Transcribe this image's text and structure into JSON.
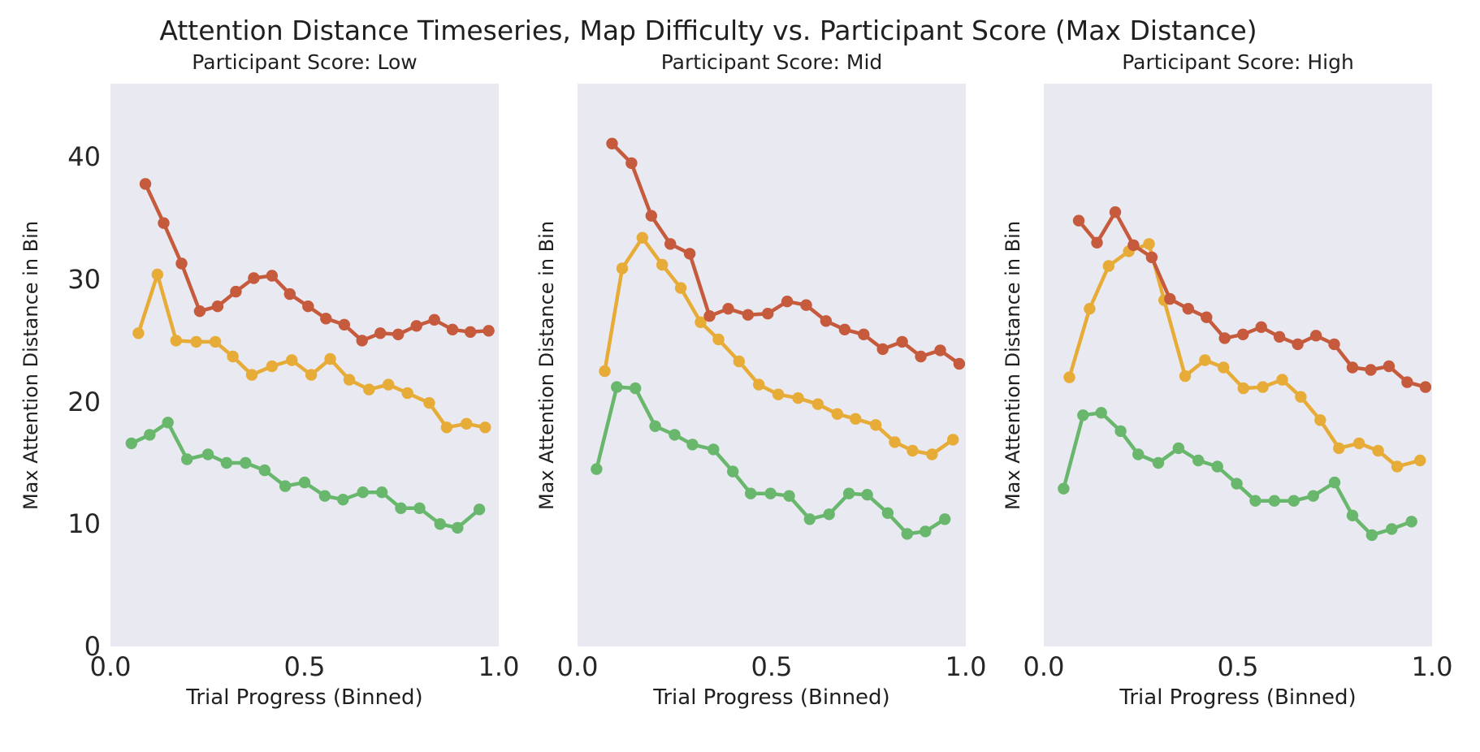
{
  "figure": {
    "suptitle": "Attention Distance Timeseries, Map Difficulty vs. Participant Score (Max Distance)",
    "background_color": "#ffffff",
    "plot_background_color": "#E9E9F2",
    "text_color": "#1f1f1f",
    "series_colors": {
      "green": "#69B76D",
      "gold": "#E7AC38",
      "red": "#C65A3C"
    }
  },
  "chart_data": [
    {
      "type": "line",
      "title": "Participant Score: Low",
      "xlabel": "Trial Progress (Binned)",
      "ylabel": "Max Attention Distance in Bin",
      "xlim": [
        0,
        1
      ],
      "ylim": [
        0,
        46
      ],
      "grid": false,
      "legend": "none",
      "show_ytick_labels": true,
      "xtick_values": [
        0,
        0.5,
        1
      ],
      "xtick_labels": [
        "0.0",
        "0.5",
        "1.0"
      ],
      "ytick_values": [
        0,
        10,
        20,
        30,
        40
      ],
      "ytick_labels": [
        "0",
        "10",
        "20",
        "30",
        "40"
      ],
      "series": [
        {
          "name": "green",
          "color": "#69B76D",
          "x": [
            0.054,
            0.101,
            0.148,
            0.197,
            0.251,
            0.299,
            0.348,
            0.397,
            0.45,
            0.5,
            0.552,
            0.599,
            0.65,
            0.699,
            0.748,
            0.796,
            0.849,
            0.894,
            0.95
          ],
          "y": [
            16.6,
            17.3,
            18.3,
            15.3,
            15.7,
            15.0,
            15.0,
            14.4,
            13.1,
            13.4,
            12.3,
            12.0,
            12.6,
            12.6,
            11.3,
            11.3,
            10.0,
            9.7,
            11.2
          ]
        },
        {
          "name": "gold",
          "color": "#E7AC38",
          "x": [
            0.072,
            0.121,
            0.169,
            0.221,
            0.27,
            0.315,
            0.364,
            0.416,
            0.467,
            0.517,
            0.566,
            0.615,
            0.666,
            0.716,
            0.765,
            0.821,
            0.866,
            0.917,
            0.965
          ],
          "y": [
            25.6,
            30.4,
            25.0,
            24.9,
            24.9,
            23.7,
            22.2,
            22.9,
            23.4,
            22.2,
            23.5,
            21.8,
            21.0,
            21.4,
            20.7,
            19.9,
            17.9,
            18.2,
            17.9
          ]
        },
        {
          "name": "red",
          "color": "#C65A3C",
          "x": [
            0.09,
            0.137,
            0.183,
            0.23,
            0.276,
            0.323,
            0.369,
            0.416,
            0.462,
            0.509,
            0.555,
            0.602,
            0.648,
            0.695,
            0.741,
            0.788,
            0.834,
            0.881,
            0.927,
            0.974
          ],
          "y": [
            37.8,
            34.6,
            31.3,
            27.4,
            27.8,
            29.0,
            30.1,
            30.3,
            28.8,
            27.8,
            26.8,
            26.3,
            25.0,
            25.6,
            25.5,
            26.2,
            26.7,
            25.9,
            25.7,
            25.8
          ]
        }
      ]
    },
    {
      "type": "line",
      "title": "Participant Score: Mid",
      "xlabel": "Trial Progress (Binned)",
      "ylabel": "Max Attention Distance in Bin",
      "xlim": [
        0,
        1
      ],
      "ylim": [
        0,
        46
      ],
      "grid": false,
      "legend": "none",
      "show_ytick_labels": false,
      "xtick_values": [
        0,
        0.5,
        1
      ],
      "xtick_labels": [
        "0.0",
        "0.5",
        "1.0"
      ],
      "ytick_values": [
        0,
        10,
        20,
        30,
        40
      ],
      "ytick_labels": [
        "0",
        "10",
        "20",
        "30",
        "40"
      ],
      "series": [
        {
          "name": "green",
          "color": "#69B76D",
          "x": [
            0.049,
            0.101,
            0.149,
            0.2,
            0.25,
            0.296,
            0.35,
            0.4,
            0.446,
            0.497,
            0.545,
            0.598,
            0.648,
            0.699,
            0.746,
            0.799,
            0.849,
            0.896,
            0.946
          ],
          "y": [
            14.5,
            21.2,
            21.1,
            18.0,
            17.3,
            16.5,
            16.1,
            14.3,
            12.5,
            12.5,
            12.3,
            10.4,
            10.8,
            12.5,
            12.4,
            10.9,
            9.2,
            9.4,
            10.4
          ]
        },
        {
          "name": "gold",
          "color": "#E7AC38",
          "x": [
            0.07,
            0.115,
            0.167,
            0.218,
            0.266,
            0.317,
            0.363,
            0.416,
            0.467,
            0.517,
            0.568,
            0.619,
            0.669,
            0.716,
            0.768,
            0.817,
            0.863,
            0.913,
            0.967
          ],
          "y": [
            22.5,
            30.9,
            33.4,
            31.2,
            29.3,
            26.5,
            25.1,
            23.3,
            21.4,
            20.6,
            20.3,
            19.8,
            19.0,
            18.6,
            18.1,
            16.7,
            16.0,
            15.7,
            16.9
          ]
        },
        {
          "name": "red",
          "color": "#C65A3C",
          "x": [
            0.089,
            0.139,
            0.19,
            0.239,
            0.289,
            0.34,
            0.388,
            0.439,
            0.49,
            0.54,
            0.589,
            0.64,
            0.688,
            0.737,
            0.786,
            0.836,
            0.884,
            0.934,
            0.983
          ],
          "y": [
            41.1,
            39.5,
            35.2,
            32.9,
            32.1,
            27.0,
            27.6,
            27.1,
            27.2,
            28.2,
            27.9,
            26.6,
            25.9,
            25.5,
            24.3,
            24.9,
            23.7,
            24.2,
            23.1
          ]
        }
      ]
    },
    {
      "type": "line",
      "title": "Participant Score: High",
      "xlabel": "Trial Progress (Binned)",
      "ylabel": "Max Attention Distance in Bin",
      "xlim": [
        0,
        1
      ],
      "ylim": [
        0,
        46
      ],
      "grid": false,
      "legend": "none",
      "show_ytick_labels": false,
      "xtick_values": [
        0,
        0.5,
        1
      ],
      "xtick_labels": [
        "0.0",
        "0.5",
        "1.0"
      ],
      "ytick_values": [
        0,
        10,
        20,
        30,
        40
      ],
      "ytick_labels": [
        "0",
        "10",
        "20",
        "30",
        "40"
      ],
      "series": [
        {
          "name": "green",
          "color": "#69B76D",
          "x": [
            0.051,
            0.101,
            0.148,
            0.198,
            0.243,
            0.295,
            0.347,
            0.398,
            0.447,
            0.497,
            0.545,
            0.594,
            0.644,
            0.694,
            0.749,
            0.795,
            0.845,
            0.896,
            0.947
          ],
          "y": [
            12.9,
            18.9,
            19.1,
            17.6,
            15.7,
            15.0,
            16.2,
            15.2,
            14.7,
            13.3,
            11.9,
            11.9,
            11.9,
            12.3,
            13.4,
            10.7,
            9.1,
            9.6,
            10.2
          ]
        },
        {
          "name": "gold",
          "color": "#E7AC38",
          "x": [
            0.066,
            0.118,
            0.167,
            0.219,
            0.271,
            0.31,
            0.364,
            0.415,
            0.463,
            0.514,
            0.564,
            0.614,
            0.662,
            0.712,
            0.76,
            0.812,
            0.861,
            0.91,
            0.969
          ],
          "y": [
            22.0,
            27.6,
            31.1,
            32.3,
            32.9,
            28.3,
            22.1,
            23.4,
            22.8,
            21.1,
            21.2,
            21.8,
            20.4,
            18.5,
            16.2,
            16.6,
            16.0,
            14.7,
            15.2
          ]
        },
        {
          "name": "red",
          "color": "#C65A3C",
          "x": [
            0.09,
            0.137,
            0.184,
            0.231,
            0.278,
            0.325,
            0.372,
            0.419,
            0.466,
            0.513,
            0.56,
            0.607,
            0.654,
            0.701,
            0.748,
            0.795,
            0.842,
            0.889,
            0.936,
            0.983
          ],
          "y": [
            34.8,
            33.0,
            35.5,
            32.8,
            31.8,
            28.4,
            27.6,
            26.9,
            25.2,
            25.5,
            26.1,
            25.3,
            24.7,
            25.4,
            24.7,
            22.8,
            22.6,
            22.9,
            21.6,
            21.2
          ]
        }
      ]
    }
  ]
}
